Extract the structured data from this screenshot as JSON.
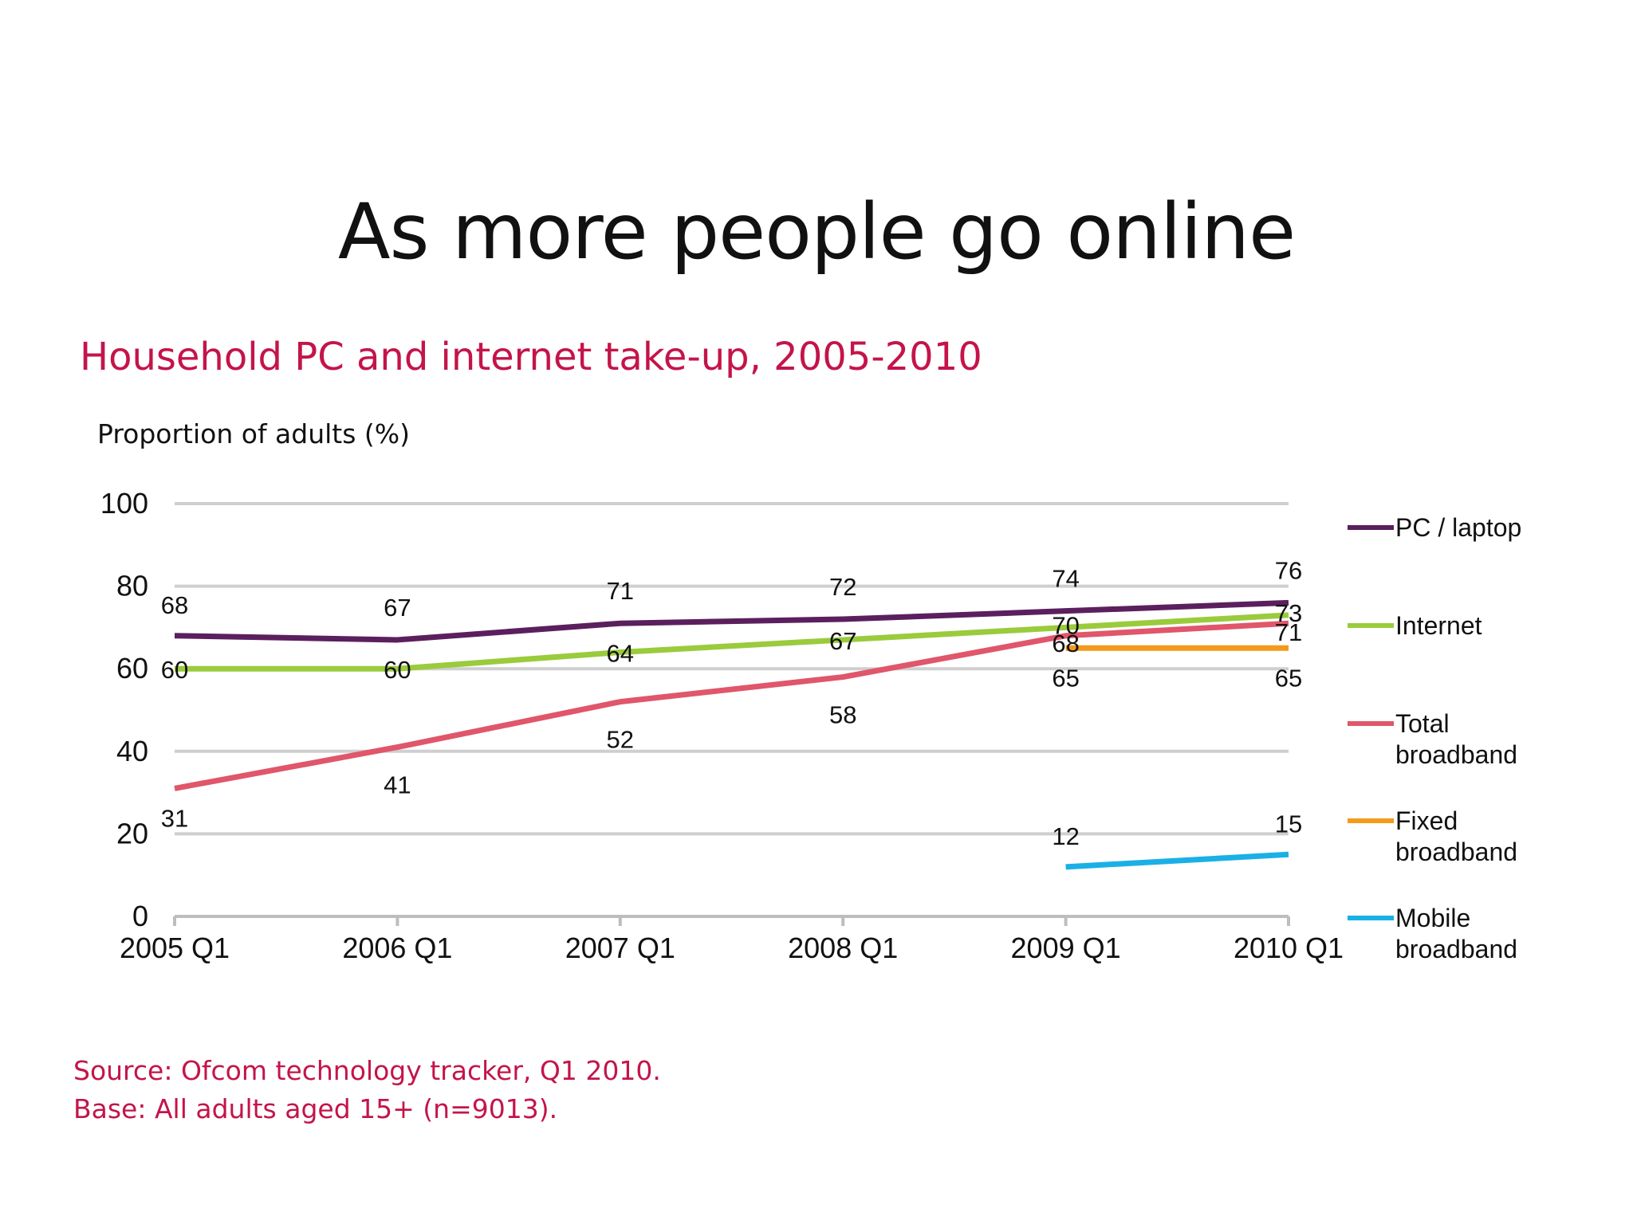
{
  "slide": {
    "title": "As more people go online"
  },
  "source": {
    "line1": "Source: Ofcom technology tracker, Q1 2010.",
    "line2": "Base: All adults aged 15+ (n=9013)."
  },
  "chart_data": {
    "type": "line",
    "title": "Household PC and internet take-up, 2005-2010",
    "ylabel": "Proportion of adults (%)",
    "xlabel": "",
    "categories": [
      "2005 Q1",
      "2006 Q1",
      "2007 Q1",
      "2008 Q1",
      "2009 Q1",
      "2010 Q1"
    ],
    "ylim": [
      0,
      100
    ],
    "yticks": [
      0,
      20,
      40,
      60,
      80,
      100
    ],
    "grid": true,
    "legend_position": "right",
    "series": [
      {
        "name": "PC / laptop",
        "color": "#5b1f5e",
        "values": [
          68,
          67,
          71,
          72,
          74,
          76
        ]
      },
      {
        "name": "Internet",
        "color": "#9acb3c",
        "values": [
          60,
          60,
          64,
          67,
          70,
          73
        ]
      },
      {
        "name": "Total broadband",
        "color": "#e0566a",
        "values": [
          31,
          41,
          52,
          58,
          68,
          71
        ]
      },
      {
        "name": "Fixed broadband",
        "color": "#f39a1c",
        "values": [
          null,
          null,
          null,
          null,
          65,
          65
        ]
      },
      {
        "name": "Mobile broadband",
        "color": "#1ab0e6",
        "values": [
          null,
          null,
          null,
          null,
          12,
          15
        ]
      }
    ]
  }
}
